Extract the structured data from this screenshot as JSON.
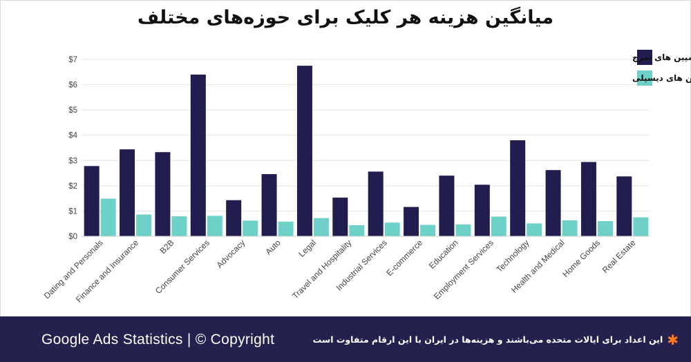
{
  "title": "میانگین هزینه هر کلیک برای حوزه‌های مختلف",
  "footer": {
    "brand": "Google Ads Statistics | © Copyright",
    "note": "این اعداد برای ایالات متحده می‌باشند و هزینه‌ها در ایران با این ارقام متفاوت است",
    "note_icon": "asterisk-icon"
  },
  "colors": {
    "search": "#221d4f",
    "display": "#6ed1c8",
    "footer_bg": "#25214f",
    "asterisk": "#ff7a1a"
  },
  "chart_data": {
    "type": "bar",
    "title": "میانگین هزینه هر کلیک برای حوزه‌های مختلف",
    "xlabel": "",
    "ylabel": "",
    "ylim": [
      0,
      7
    ],
    "y_ticks": [
      "$0",
      "$1",
      "$2",
      "$3",
      "$4",
      "$5",
      "$6",
      "$7"
    ],
    "grid": true,
    "legend_position": "top-right",
    "categories": [
      "Dating and Personals",
      "Finance and Insurance",
      "B2B",
      "Consumer Services",
      "Advocacy",
      "Auto",
      "Legal",
      "Travel and Hospitality",
      "Industrial Services",
      "E-commerce",
      "Education",
      "Employment Services",
      "Technology",
      "Health and Medical",
      "Home Goods",
      "Real Estate"
    ],
    "series": [
      {
        "name": "میانگین هزینه هر کلیک در کمپین های سرچ",
        "color": "#221d4f",
        "values": [
          2.78,
          3.44,
          3.33,
          6.4,
          1.43,
          2.46,
          6.75,
          1.53,
          2.56,
          1.16,
          2.4,
          2.04,
          3.8,
          2.62,
          2.94,
          2.37
        ]
      },
      {
        "name": "میانگین هزینه هر کلیک در کمپین های دیسپلی",
        "color": "#6ed1c8",
        "values": [
          1.49,
          0.86,
          0.79,
          0.81,
          0.62,
          0.58,
          0.72,
          0.44,
          0.54,
          0.45,
          0.47,
          0.78,
          0.51,
          0.63,
          0.6,
          0.75
        ]
      }
    ]
  }
}
